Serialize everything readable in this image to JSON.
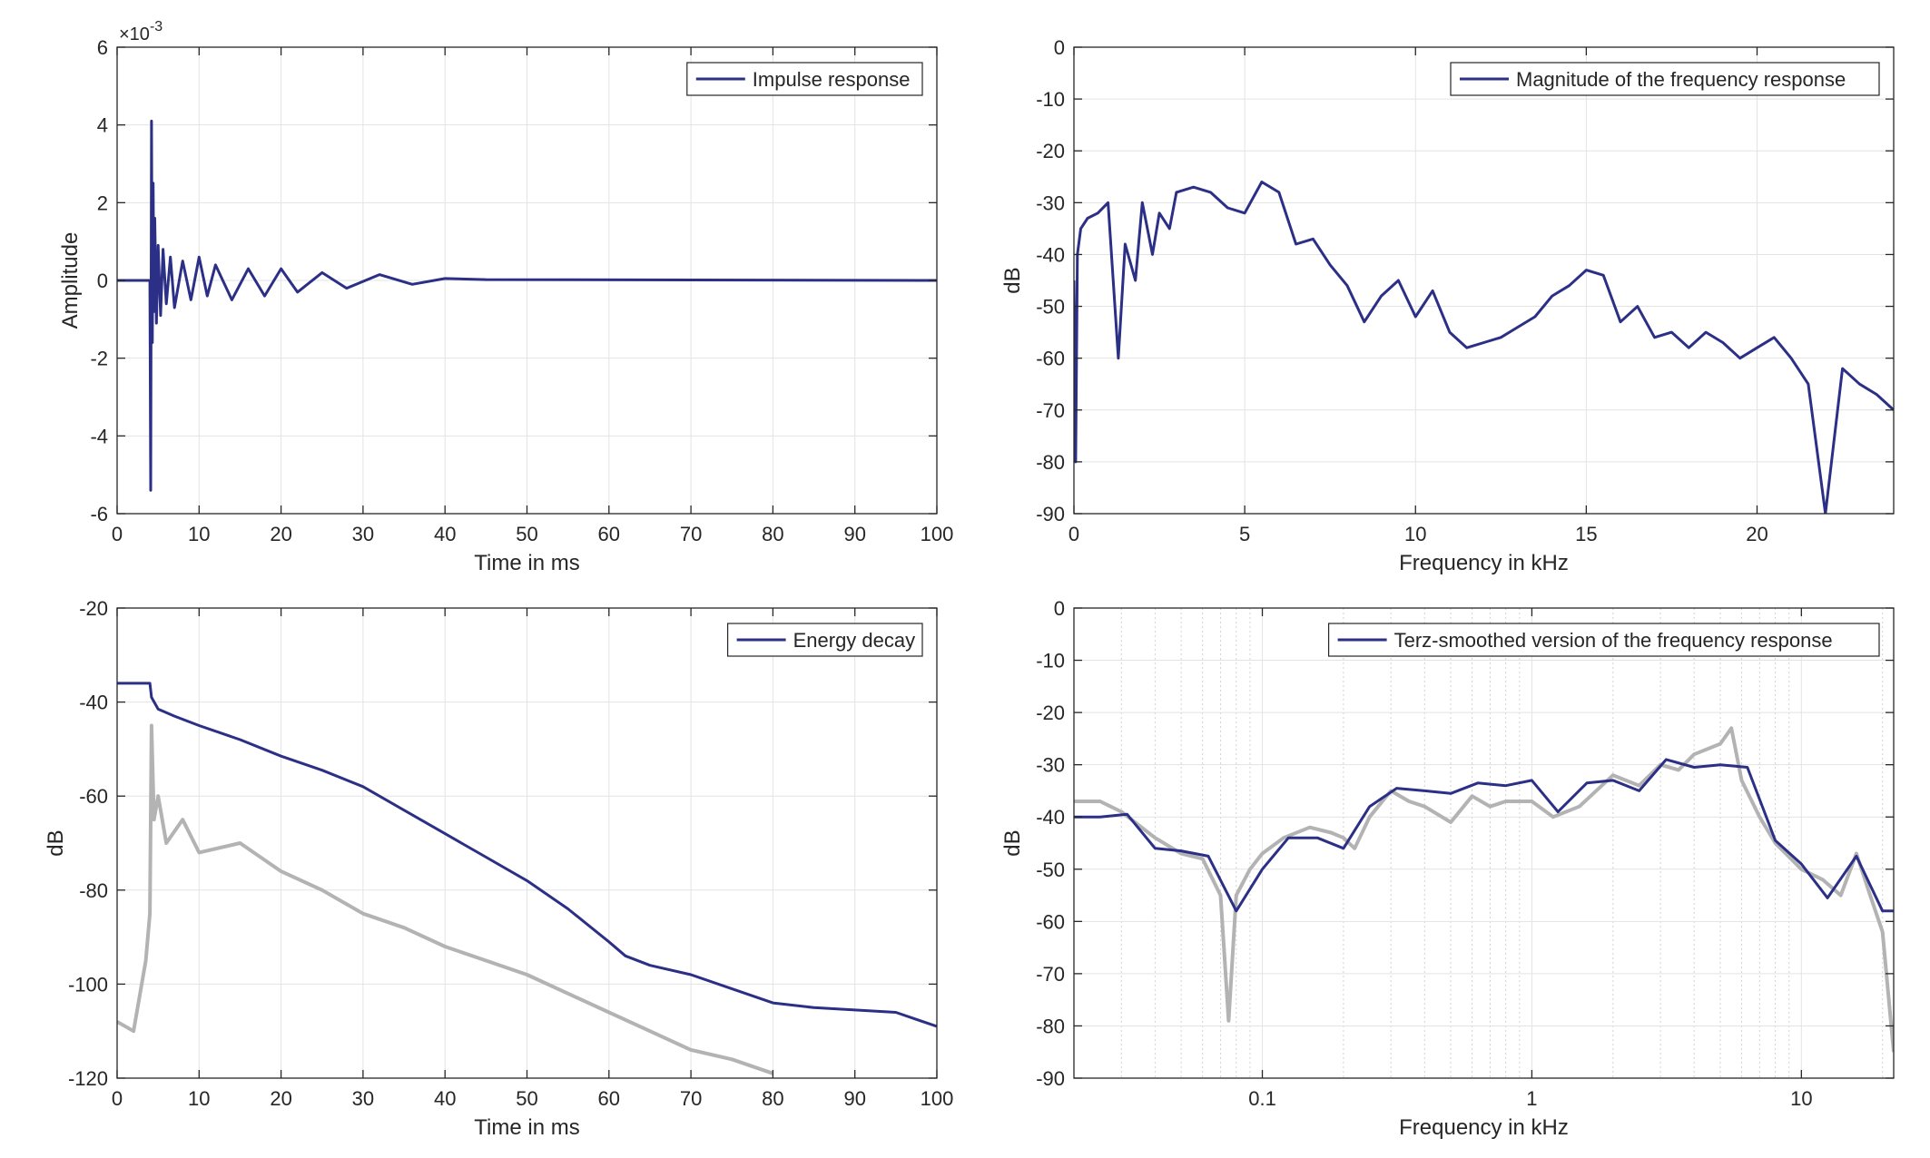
{
  "colors": {
    "primary_series": "#2b2f86",
    "secondary_series": "#b3b3b3",
    "grid": "#e3e3e3",
    "minor_grid": "#d2d2d2",
    "axes": "#262626",
    "background": "#ffffff"
  },
  "chart_data": [
    {
      "id": "impulse",
      "type": "line",
      "xlabel": "Time in ms",
      "ylabel": "Amplitude",
      "exponent_label": "×10",
      "exponent_power": "-3",
      "xlim": [
        0,
        100
      ],
      "ylim": [
        -6,
        6
      ],
      "xticks": [
        0,
        10,
        20,
        30,
        40,
        50,
        60,
        70,
        80,
        90,
        100
      ],
      "yticks": [
        -6,
        -4,
        -2,
        0,
        2,
        4,
        6
      ],
      "xtick_labels": [
        "0",
        "10",
        "20",
        "30",
        "40",
        "50",
        "60",
        "70",
        "80",
        "90",
        "100"
      ],
      "ytick_labels": [
        "-6",
        "-4",
        "-2",
        "0",
        "2",
        "4",
        "6"
      ],
      "grid": true,
      "legend_position": "top-right",
      "series": [
        {
          "name": "Impulse response",
          "color": "#2b2f86",
          "x": [
            0,
            4.0,
            4.1,
            4.2,
            4.3,
            4.4,
            4.5,
            4.6,
            4.8,
            5.0,
            5.3,
            5.6,
            6.0,
            6.5,
            7.0,
            8.0,
            9.0,
            10.0,
            11.0,
            12.0,
            14.0,
            16.0,
            18.0,
            20.0,
            22.0,
            25.0,
            28.0,
            32.0,
            36.0,
            40.0,
            45.0,
            100.0
          ],
          "y": [
            0,
            0,
            -5.4,
            4.1,
            -1.6,
            2.5,
            -0.8,
            1.6,
            -1.1,
            0.9,
            -0.9,
            0.8,
            -0.6,
            0.6,
            -0.7,
            0.5,
            -0.5,
            0.6,
            -0.4,
            0.4,
            -0.5,
            0.3,
            -0.4,
            0.3,
            -0.3,
            0.2,
            -0.2,
            0.15,
            -0.1,
            0.05,
            0.02,
            0.0
          ]
        }
      ]
    },
    {
      "id": "magnitude",
      "type": "line",
      "xlabel": "Frequency in kHz",
      "ylabel": "dB",
      "xlim": [
        0,
        24
      ],
      "ylim": [
        -90,
        0
      ],
      "xticks": [
        0,
        5,
        10,
        15,
        20
      ],
      "yticks": [
        -90,
        -80,
        -70,
        -60,
        -50,
        -40,
        -30,
        -20,
        -10,
        0
      ],
      "xtick_labels": [
        "0",
        "5",
        "10",
        "15",
        "20"
      ],
      "ytick_labels": [
        "-90",
        "-80",
        "-70",
        "-60",
        "-50",
        "-40",
        "-30",
        "-20",
        "-10",
        "0"
      ],
      "grid": true,
      "legend_position": "top-right",
      "series": [
        {
          "name": "Magnitude of the frequency response",
          "color": "#2b2f86",
          "x": [
            0,
            0.05,
            0.1,
            0.2,
            0.4,
            0.7,
            1.0,
            1.3,
            1.5,
            1.8,
            2.0,
            2.3,
            2.5,
            2.8,
            3.0,
            3.5,
            4.0,
            4.5,
            5.0,
            5.5,
            6.0,
            6.5,
            7.0,
            7.5,
            8.0,
            8.5,
            9.0,
            9.5,
            10.0,
            10.5,
            11.0,
            11.5,
            12.0,
            12.5,
            13.0,
            13.5,
            14.0,
            14.5,
            15.0,
            15.5,
            16.0,
            16.5,
            17.0,
            17.5,
            18.0,
            18.5,
            19.0,
            19.5,
            20.0,
            20.5,
            21.0,
            21.5,
            22.0,
            22.5,
            23.0,
            23.5,
            24.0
          ],
          "y": [
            -45,
            -80,
            -40,
            -35,
            -33,
            -32,
            -30,
            -60,
            -38,
            -45,
            -30,
            -40,
            -32,
            -35,
            -28,
            -27,
            -28,
            -31,
            -32,
            -26,
            -28,
            -38,
            -37,
            -42,
            -46,
            -53,
            -48,
            -45,
            -52,
            -47,
            -55,
            -58,
            -57,
            -56,
            -54,
            -52,
            -48,
            -46,
            -43,
            -44,
            -53,
            -50,
            -56,
            -55,
            -58,
            -55,
            -57,
            -60,
            -58,
            -56,
            -60,
            -65,
            -90,
            -62,
            -65,
            -67,
            -70
          ]
        }
      ]
    },
    {
      "id": "energy",
      "type": "line",
      "xlabel": "Time in ms",
      "ylabel": "dB",
      "xlim": [
        0,
        100
      ],
      "ylim": [
        -120,
        -20
      ],
      "xticks": [
        0,
        10,
        20,
        30,
        40,
        50,
        60,
        70,
        80,
        90,
        100
      ],
      "yticks": [
        -120,
        -100,
        -80,
        -60,
        -40,
        -20
      ],
      "xtick_labels": [
        "0",
        "10",
        "20",
        "30",
        "40",
        "50",
        "60",
        "70",
        "80",
        "90",
        "100"
      ],
      "ytick_labels": [
        "-120",
        "-100",
        "-80",
        "-60",
        "-40",
        "-20"
      ],
      "grid": true,
      "legend_position": "top-right",
      "series": [
        {
          "name": "Energy decay",
          "color": "#2b2f86",
          "x": [
            0,
            4.0,
            4.2,
            5.0,
            7.0,
            10.0,
            15.0,
            20.0,
            25.0,
            30.0,
            35.0,
            40.0,
            45.0,
            50.0,
            55.0,
            60.0,
            62.0,
            65.0,
            70.0,
            75.0,
            80.0,
            85.0,
            90.0,
            95.0,
            100.0
          ],
          "y": [
            -36,
            -36,
            -39,
            -41.5,
            -43,
            -45,
            -48,
            -51.5,
            -54.5,
            -58,
            -63,
            -68,
            -73,
            -78,
            -84,
            -91,
            -94,
            -96,
            -98,
            -101,
            -104,
            -105,
            -105.5,
            -106,
            -109
          ]
        },
        {
          "color": "#b3b3b3",
          "x": [
            0,
            2.0,
            3.5,
            4.0,
            4.2,
            4.5,
            5.0,
            6.0,
            8.0,
            10.0,
            15.0,
            20.0,
            25.0,
            30.0,
            35.0,
            40.0,
            45.0,
            50.0,
            55.0,
            60.0,
            65.0,
            70.0,
            75.0,
            80.0
          ],
          "y": [
            -108,
            -110,
            -95,
            -85,
            -45,
            -65,
            -60,
            -70,
            -65,
            -72,
            -70,
            -76,
            -80,
            -85,
            -88,
            -92,
            -95,
            -98,
            -102,
            -106,
            -110,
            -114,
            -116,
            -119
          ]
        }
      ]
    },
    {
      "id": "terz",
      "type": "line",
      "xlabel": "Frequency in kHz",
      "ylabel": "dB",
      "xscale": "log",
      "xlim": [
        0.02,
        22
      ],
      "ylim": [
        -90,
        0
      ],
      "xticks": [
        0.1,
        1,
        10
      ],
      "yticks": [
        -90,
        -80,
        -70,
        -60,
        -50,
        -40,
        -30,
        -20,
        -10,
        0
      ],
      "xtick_labels": [
        "0.1",
        "1",
        "10"
      ],
      "ytick_labels": [
        "-90",
        "-80",
        "-70",
        "-60",
        "-50",
        "-40",
        "-30",
        "-20",
        "-10",
        "0"
      ],
      "grid": true,
      "legend_position": "top-right",
      "series": [
        {
          "name": "Terz-smoothed version of the frequency response",
          "color": "#2b2f86",
          "x": [
            0.02,
            0.025,
            0.0315,
            0.04,
            0.05,
            0.063,
            0.08,
            0.1,
            0.125,
            0.16,
            0.2,
            0.25,
            0.315,
            0.4,
            0.5,
            0.63,
            0.8,
            1.0,
            1.25,
            1.6,
            2.0,
            2.5,
            3.15,
            4.0,
            5.0,
            6.3,
            8.0,
            10.0,
            12.5,
            16.0,
            20.0,
            22.0
          ],
          "y": [
            -40,
            -40,
            -39.5,
            -46,
            -46.5,
            -47.5,
            -58,
            -50,
            -44,
            -44,
            -46,
            -38,
            -34.5,
            -35,
            -35.5,
            -33.5,
            -34,
            -33,
            -39,
            -33.5,
            -33,
            -35,
            -29,
            -30.5,
            -30,
            -30.5,
            -44.5,
            -49,
            -55.5,
            -47.5,
            -58,
            -58
          ]
        },
        {
          "color": "#b3b3b3",
          "x": [
            0.02,
            0.025,
            0.03,
            0.04,
            0.05,
            0.06,
            0.07,
            0.075,
            0.08,
            0.09,
            0.1,
            0.12,
            0.15,
            0.18,
            0.2,
            0.22,
            0.25,
            0.3,
            0.35,
            0.4,
            0.5,
            0.6,
            0.7,
            0.8,
            1.0,
            1.2,
            1.5,
            2.0,
            2.5,
            3.0,
            3.5,
            4.0,
            5.0,
            5.5,
            6.0,
            7.0,
            8.0,
            10.0,
            12.0,
            14.0,
            16.0,
            18.0,
            20.0,
            22.0
          ],
          "y": [
            -37,
            -37,
            -39,
            -44,
            -47,
            -48,
            -55,
            -79,
            -55,
            -50,
            -47,
            -44,
            -42,
            -43,
            -44,
            -46,
            -40,
            -35,
            -37,
            -38,
            -41,
            -36,
            -38,
            -37,
            -37,
            -40,
            -38,
            -32,
            -34,
            -30,
            -31,
            -28,
            -26,
            -23,
            -33,
            -40,
            -45,
            -50,
            -52,
            -55,
            -47,
            -55,
            -62,
            -85
          ]
        }
      ]
    }
  ]
}
